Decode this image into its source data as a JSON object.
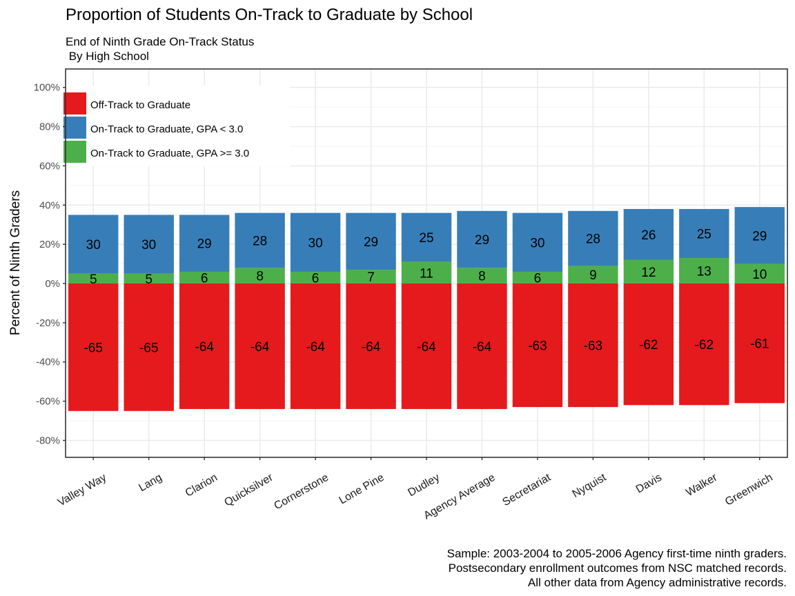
{
  "title": "Proportion of Students On-Track to Graduate by School",
  "subtitle": "End of Ninth Grade On-Track Status\n By High School",
  "caption": "Sample: 2003-2004 to 2005-2006 Agency first-time ninth graders.\nPostsecondary enrollment outcomes from NSC matched records.\nAll other data from Agency administrative records.",
  "colors": {
    "off_track": "#E41A1C",
    "on_track_low": "#377EB8",
    "on_track_high": "#4DAF4A",
    "grid": "#ebebeb",
    "panel_border": "#333333"
  },
  "chart_data": {
    "type": "bar",
    "stacked": true,
    "title": "Proportion of Students On-Track to Graduate by School",
    "subtitle": "End of Ninth Grade On-Track Status\n By High School",
    "xlabel": "",
    "ylabel": "Percent of Ninth Graders",
    "ylim": [
      -85,
      100
    ],
    "y_ticks": [
      -80,
      -60,
      -40,
      -20,
      0,
      20,
      40,
      60,
      80,
      100
    ],
    "y_tick_labels": [
      "-80%",
      "-60%",
      "-40%",
      "-20%",
      "0%",
      "20%",
      "40%",
      "60%",
      "80%",
      "100%"
    ],
    "grid": true,
    "legend_position": "top-left",
    "categories": [
      "Valley Way",
      "Lang",
      "Clarion",
      "Quicksilver",
      "Cornerstone",
      "Lone Pine",
      "Dudley",
      "Agency Average",
      "Secretariat",
      "Nyquist",
      "Davis",
      "Walker",
      "Greenwich"
    ],
    "series": [
      {
        "name": "Off-Track to Graduate",
        "color": "#E41A1C",
        "values": [
          -65,
          -65,
          -64,
          -64,
          -64,
          -64,
          -64,
          -64,
          -63,
          -63,
          -62,
          -62,
          -61
        ]
      },
      {
        "name": "On-Track to Graduate, GPA < 3.0",
        "color": "#377EB8",
        "values": [
          30,
          30,
          29,
          28,
          30,
          29,
          25,
          29,
          30,
          28,
          26,
          25,
          29
        ]
      },
      {
        "name": "On-Track to Graduate, GPA >= 3.0",
        "color": "#4DAF4A",
        "values": [
          5,
          5,
          6,
          8,
          6,
          7,
          11,
          8,
          6,
          9,
          12,
          13,
          10
        ]
      }
    ],
    "legend_order": [
      "Off-Track to Graduate",
      "On-Track to Graduate, GPA < 3.0",
      "On-Track to Graduate, GPA >= 3.0"
    ]
  }
}
